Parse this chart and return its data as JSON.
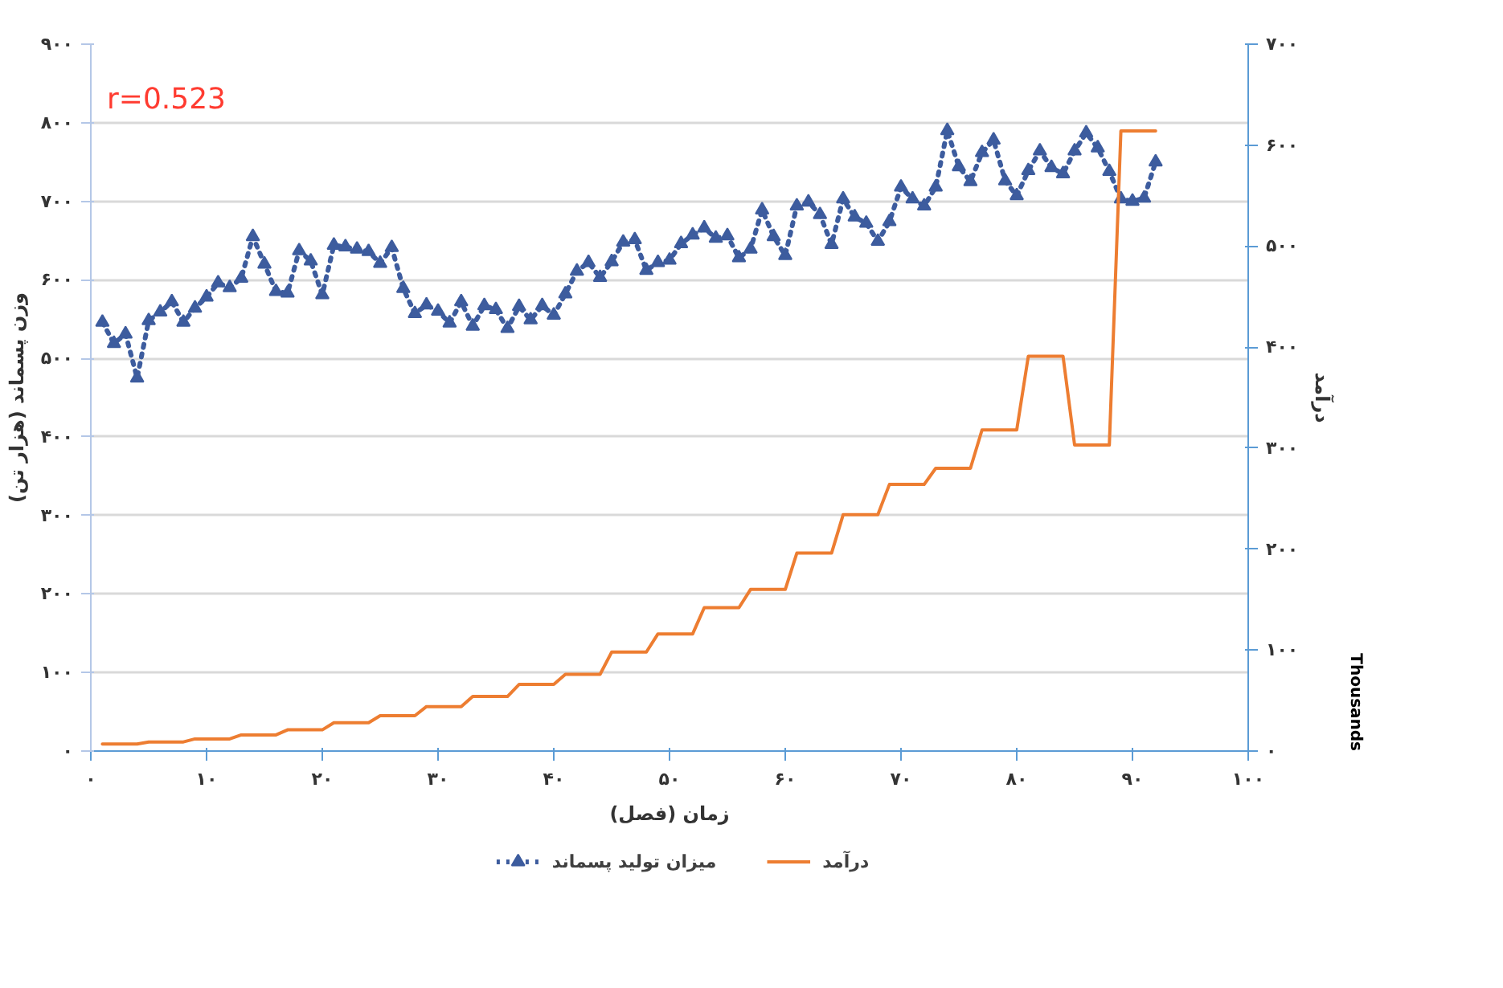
{
  "chart_data": {
    "type": "line",
    "xlabel": "زمان (فصل)",
    "ylabel": "وزن پسماند (هزار تن)",
    "y2label": "درآمد",
    "annotations": [
      "r=0.523",
      "Thousands"
    ],
    "x": [
      1,
      2,
      3,
      4,
      5,
      6,
      7,
      8,
      9,
      10,
      11,
      12,
      13,
      14,
      15,
      16,
      17,
      18,
      19,
      20,
      21,
      22,
      23,
      24,
      25,
      26,
      27,
      28,
      29,
      30,
      31,
      32,
      33,
      34,
      35,
      36,
      37,
      38,
      39,
      40,
      41,
      42,
      43,
      44,
      45,
      46,
      47,
      48,
      49,
      50,
      51,
      52,
      53,
      54,
      55,
      56,
      57,
      58,
      59,
      60,
      61,
      62,
      63,
      64,
      65,
      66,
      67,
      68,
      69,
      70,
      71,
      72,
      73,
      74,
      75,
      76,
      77,
      78,
      79,
      80,
      81,
      82,
      83,
      84,
      85,
      86,
      87,
      88,
      89,
      90,
      91,
      92
    ],
    "series": [
      {
        "name": "میزان تولید پسماند",
        "type": "line",
        "color": "#3d5c9e",
        "marker": "triangle",
        "line_style": "dotted",
        "values": [
          546,
          519,
          531,
          475,
          548,
          559,
          572,
          546,
          564,
          578,
          596,
          590,
          602,
          655,
          620,
          585,
          583,
          637,
          624,
          581,
          644,
          642,
          639,
          636,
          621,
          641,
          589,
          557,
          568,
          560,
          545,
          572,
          541,
          567,
          562,
          538,
          566,
          549,
          567,
          555,
          582,
          611,
          622,
          603,
          623,
          648,
          651,
          612,
          622,
          625,
          646,
          657,
          666,
          653,
          656,
          628,
          639,
          689,
          655,
          631,
          694,
          699,
          683,
          645,
          703,
          680,
          672,
          649,
          674,
          718,
          703,
          694,
          718,
          790,
          744,
          725,
          762,
          778,
          726,
          707,
          739,
          764,
          743,
          735,
          764,
          787,
          768,
          738,
          703,
          700,
          704,
          750
        ]
      },
      {
        "name": "درآمد",
        "type": "line",
        "color": "#ed7d31",
        "axis": "y2",
        "line_style": "solid",
        "values": [
          7,
          7,
          7,
          7,
          9,
          9,
          9,
          9,
          12,
          12,
          12,
          12,
          16,
          16,
          16,
          16,
          21,
          21,
          21,
          21,
          28,
          28,
          28,
          28,
          35,
          35,
          35,
          35,
          44,
          44,
          44,
          44,
          54,
          54,
          54,
          54,
          66,
          66,
          66,
          66,
          76,
          76,
          76,
          76,
          98,
          98,
          98,
          98,
          116,
          116,
          116,
          116,
          142,
          142,
          142,
          142,
          160,
          160,
          160,
          160,
          196,
          196,
          196,
          196,
          234,
          234,
          234,
          234,
          264,
          264,
          264,
          264,
          280,
          280,
          280,
          280,
          318,
          318,
          318,
          318,
          391,
          391,
          391,
          391,
          303,
          303,
          303,
          303,
          614,
          614,
          614,
          614
        ]
      }
    ],
    "xlim": [
      0,
      100
    ],
    "xticks": [
      {
        "value": 0,
        "label": "۰"
      },
      {
        "value": 10,
        "label": "۱۰"
      },
      {
        "value": 20,
        "label": "۲۰"
      },
      {
        "value": 30,
        "label": "۳۰"
      },
      {
        "value": 40,
        "label": "۴۰"
      },
      {
        "value": 50,
        "label": "۵۰"
      },
      {
        "value": 60,
        "label": "۶۰"
      },
      {
        "value": 70,
        "label": "۷۰"
      },
      {
        "value": 80,
        "label": "۸۰"
      },
      {
        "value": 90,
        "label": "۹۰"
      },
      {
        "value": 100,
        "label": "۱۰۰"
      }
    ],
    "ylim": [
      0,
      900
    ],
    "yticks": [
      {
        "value": 0,
        "label": "۰"
      },
      {
        "value": 100,
        "label": "۱۰۰"
      },
      {
        "value": 200,
        "label": "۲۰۰"
      },
      {
        "value": 300,
        "label": "۳۰۰"
      },
      {
        "value": 400,
        "label": "۴۰۰"
      },
      {
        "value": 500,
        "label": "۵۰۰"
      },
      {
        "value": 600,
        "label": "۶۰۰"
      },
      {
        "value": 700,
        "label": "۷۰۰"
      },
      {
        "value": 800,
        "label": "۸۰۰"
      },
      {
        "value": 900,
        "label": "۹۰۰"
      }
    ],
    "y2lim": [
      0,
      700
    ],
    "y2ticks": [
      {
        "value": 0,
        "label": "۰"
      },
      {
        "value": 100,
        "label": "۱۰۰"
      },
      {
        "value": 200,
        "label": "۲۰۰"
      },
      {
        "value": 300,
        "label": "۳۰۰"
      },
      {
        "value": 400,
        "label": "۴۰۰"
      },
      {
        "value": 500,
        "label": "۵۰۰"
      },
      {
        "value": 600,
        "label": "۶۰۰"
      },
      {
        "value": 700,
        "label": "۷۰۰"
      }
    ],
    "grid": "y",
    "legend": "bottom"
  }
}
